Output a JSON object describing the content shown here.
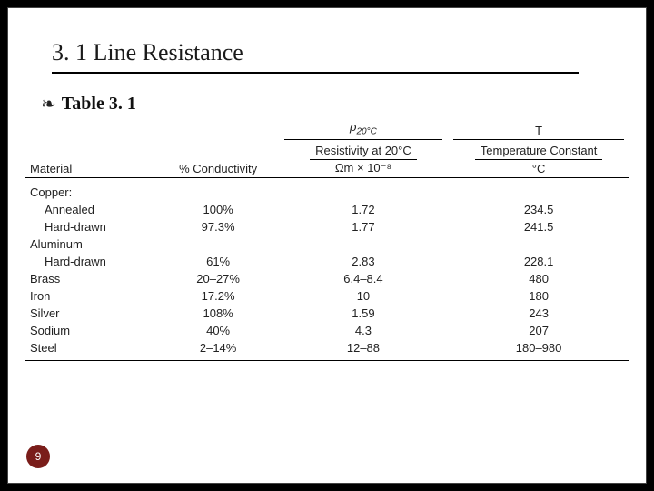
{
  "slide": {
    "title": "3. 1 Line Resistance",
    "subtitle": "Table 3. 1",
    "bullet_glyph": "❧"
  },
  "table": {
    "symbols": {
      "rho": "ρ",
      "rho_sub": "20°C",
      "T": "T"
    },
    "descriptions": {
      "res": "Resistivity at 20°C",
      "temp": "Temperature Constant"
    },
    "headers": {
      "material": "Material",
      "conductivity": "% Conductivity",
      "res_unit": "Ωm × 10⁻⁸",
      "temp_unit": "°C"
    },
    "rows": [
      {
        "material": "Copper:",
        "cond": "",
        "res": "",
        "temp": "",
        "group": true
      },
      {
        "material": "Annealed",
        "cond": "100%",
        "res": "1.72",
        "temp": "234.5",
        "indent": true
      },
      {
        "material": "Hard-drawn",
        "cond": "97.3%",
        "res": "1.77",
        "temp": "241.5",
        "indent": true
      },
      {
        "material": "Aluminum",
        "cond": "",
        "res": "",
        "temp": "",
        "group": true
      },
      {
        "material": "Hard-drawn",
        "cond": "61%",
        "res": "2.83",
        "temp": "228.1",
        "indent": true
      },
      {
        "material": "Brass",
        "cond": "20–27%",
        "res": "6.4–8.4",
        "temp": "480"
      },
      {
        "material": "Iron",
        "cond": "17.2%",
        "res": "10",
        "temp": "180"
      },
      {
        "material": "Silver",
        "cond": "108%",
        "res": "1.59",
        "temp": "243"
      },
      {
        "material": "Sodium",
        "cond": "40%",
        "res": "4.3",
        "temp": "207"
      },
      {
        "material": "Steel",
        "cond": "2–14%",
        "res": "12–88",
        "temp": "180–980"
      }
    ]
  },
  "page_number": "9",
  "style": {
    "bg": "#000000",
    "slide_bg": "#ffffff",
    "title_color": "#1a1a1a",
    "title_fontsize": 26,
    "subtitle_fontsize": 20,
    "table_fontsize": 13,
    "badge_bg": "#7a1d1a",
    "badge_fg": "#ffffff",
    "rule_color": "#000000"
  }
}
